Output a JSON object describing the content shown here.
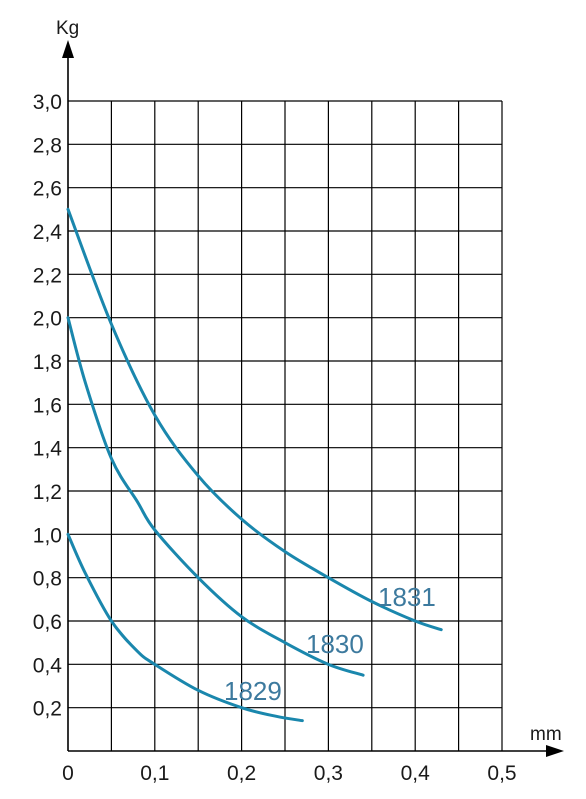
{
  "chart_data": {
    "type": "line",
    "title": "",
    "xlabel": "mm",
    "ylabel": "Kg",
    "xlim": [
      0,
      0.5
    ],
    "ylim": [
      0,
      3.0
    ],
    "grid": true,
    "x_ticks": [
      "0",
      "0,1",
      "0,2",
      "0,3",
      "0,4",
      "0,5"
    ],
    "y_ticks": [
      "0,2",
      "0,4",
      "0,6",
      "0,8",
      "1,0",
      "1,2",
      "1,4",
      "1,6",
      "1,8",
      "2,0",
      "2,2",
      "2,4",
      "2,6",
      "2,8",
      "3,0"
    ],
    "line_color": "#1a87ad",
    "label_color": "#3d7a9e",
    "series": [
      {
        "name": "1829",
        "points": [
          [
            0,
            1.0
          ],
          [
            0.02,
            0.82
          ],
          [
            0.05,
            0.6
          ],
          [
            0.08,
            0.46
          ],
          [
            0.1,
            0.4
          ],
          [
            0.15,
            0.28
          ],
          [
            0.2,
            0.2
          ],
          [
            0.24,
            0.16
          ],
          [
            0.27,
            0.14
          ]
        ]
      },
      {
        "name": "1830",
        "points": [
          [
            0,
            2.0
          ],
          [
            0.02,
            1.7
          ],
          [
            0.05,
            1.35
          ],
          [
            0.08,
            1.15
          ],
          [
            0.1,
            1.02
          ],
          [
            0.15,
            0.8
          ],
          [
            0.2,
            0.62
          ],
          [
            0.25,
            0.5
          ],
          [
            0.3,
            0.4
          ],
          [
            0.34,
            0.35
          ]
        ]
      },
      {
        "name": "1831",
        "points": [
          [
            0,
            2.5
          ],
          [
            0.05,
            1.97
          ],
          [
            0.1,
            1.55
          ],
          [
            0.15,
            1.27
          ],
          [
            0.2,
            1.07
          ],
          [
            0.25,
            0.92
          ],
          [
            0.3,
            0.8
          ],
          [
            0.35,
            0.69
          ],
          [
            0.4,
            0.6
          ],
          [
            0.43,
            0.56
          ]
        ]
      }
    ]
  }
}
